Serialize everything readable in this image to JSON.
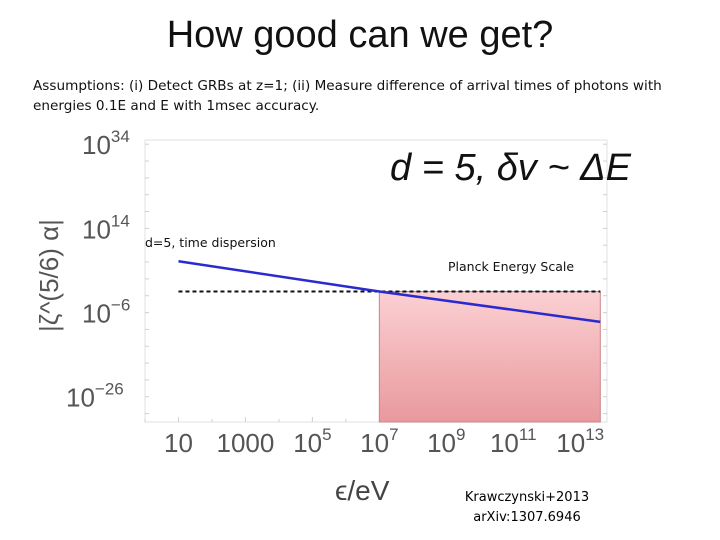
{
  "slide": {
    "title": "How good can we get?",
    "assumptions": "Assumptions: (i) Detect GRBs at z=1; (ii) Measure difference of arrival times of photons with energies 0.1E and E with 1msec accuracy.",
    "reference_line1": "Krawczynski+2013",
    "reference_line2": "arXiv:1307.6946"
  },
  "chart_data": {
    "type": "line",
    "title": "d = 5, δv ~ ΔE",
    "xlabel": "ϵ/eV",
    "ylabel": "|ζ^(5/6) α|",
    "x_scale": "log",
    "y_scale": "log",
    "xlim_log10": [
      0,
      13.8
    ],
    "ylim_log10": [
      -32,
      35
    ],
    "x_ticks": [
      {
        "base": "10",
        "exp": ""
      },
      {
        "base": "1000",
        "exp": ""
      },
      {
        "base": "10",
        "exp": "5"
      },
      {
        "base": "10",
        "exp": "7"
      },
      {
        "base": "10",
        "exp": "9"
      },
      {
        "base": "10",
        "exp": "11"
      },
      {
        "base": "10",
        "exp": "13"
      }
    ],
    "x_tick_values_log10": [
      1,
      3,
      5,
      7,
      9,
      11,
      13
    ],
    "y_ticks": [
      {
        "base": "10",
        "exp": "34"
      },
      {
        "base": "10",
        "exp": "14"
      },
      {
        "base": "10",
        "exp": "−6"
      },
      {
        "base": "10",
        "exp": "−26"
      }
    ],
    "y_tick_values_log10": [
      34,
      14,
      -6,
      -26
    ],
    "series": [
      {
        "name": "d=5, time dispersion",
        "color": "#2a2ad0",
        "x_log10": [
          1.0,
          7.0,
          13.6
        ],
        "y_log10": [
          6.2,
          -1.0,
          -8.2
        ]
      }
    ],
    "planck_energy_scale_log10": -1.0,
    "planck_label": "Planck Energy Scale",
    "excluded_region": {
      "x_log10": [
        7.0,
        13.6
      ],
      "y_log10": [
        -32,
        -1.0
      ],
      "color": "#f4a8ac"
    },
    "grid": false,
    "legend": "none"
  }
}
